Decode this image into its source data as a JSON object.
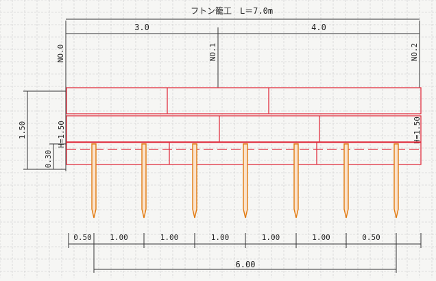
{
  "title": "フトン籠工　L＝7.0m",
  "top_dimensions": {
    "left": "3.0",
    "right": "4.0"
  },
  "stations": [
    "NO.0",
    "NO.1",
    "NO.2"
  ],
  "left_dimensions": {
    "overall": "1.50",
    "bottom": "0.30"
  },
  "height_labels": {
    "left": "H=1.50",
    "right": "H=1.50"
  },
  "bottom_dimensions": [
    "0.50",
    "1.00",
    "1.00",
    "1.00",
    "1.00",
    "1.00",
    "0.50"
  ],
  "bottom_total": "6.00",
  "colors": {
    "gabion": "#e03040",
    "stake": "#e07a10",
    "dimension": "#333333",
    "grid": "#c8c8c8"
  }
}
